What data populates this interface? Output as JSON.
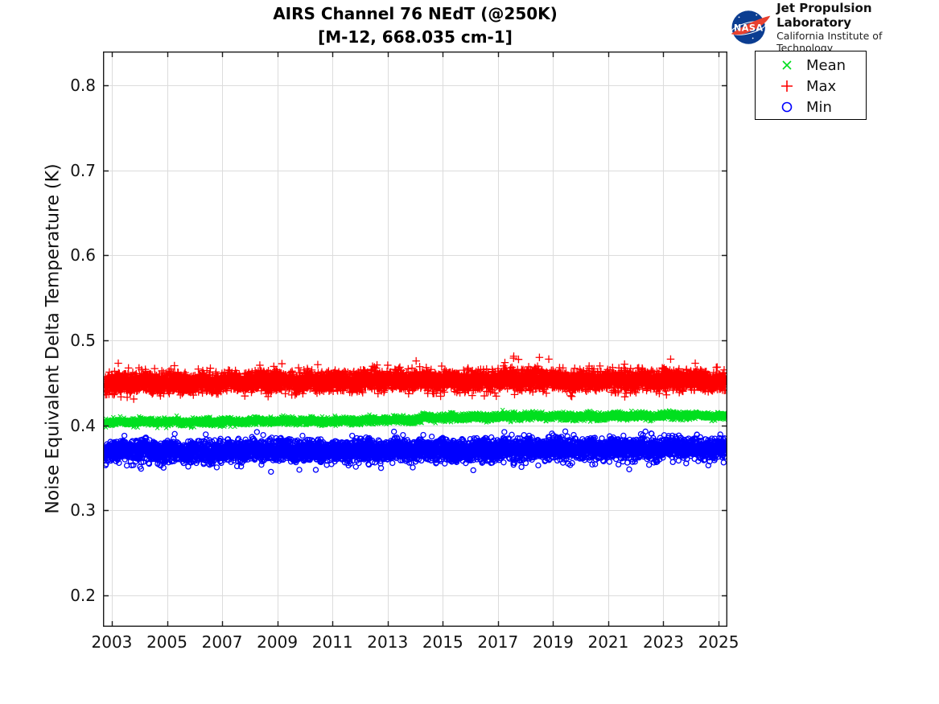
{
  "branding": {
    "org": "NASA",
    "lab_name": "Jet Propulsion Laboratory",
    "institute": "California Institute of Technology",
    "meatball_blue": "#0b3d91",
    "swoosh_red": "#e8412f"
  },
  "chart_data": {
    "type": "scatter",
    "title_line1": "AIRS Channel 76 NEdT (@250K)",
    "title_line2": "[M-12, 668.035 cm-1]",
    "title": "AIRS Channel 76 NEdT (@250K) [M-12, 668.035 cm-1]",
    "xlabel": "",
    "ylabel": "Noise Equivalent Delta Temperature (K)",
    "xlim": [
      2002.68,
      2025.32
    ],
    "ylim": [
      0.163,
      0.84
    ],
    "xticks": [
      2003,
      2005,
      2007,
      2009,
      2011,
      2013,
      2015,
      2017,
      2019,
      2021,
      2023,
      2025
    ],
    "yticks": [
      0.2,
      0.3,
      0.4,
      0.5,
      0.6,
      0.7,
      0.8
    ],
    "grid": true,
    "grid_color": "#dcdcdc",
    "axis_color": "#1c1c1c",
    "legend": {
      "position": "outside-top-right",
      "entries": [
        {
          "label": "Mean",
          "marker": "x",
          "color": "#00df1e"
        },
        {
          "label": "Max",
          "marker": "+",
          "color": "#fe0000"
        },
        {
          "label": "Min",
          "marker": "o",
          "color": "#0000fe"
        }
      ]
    },
    "series": [
      {
        "name": "Mean",
        "marker": "x",
        "color": "#00df1e",
        "marker_px": 6.4,
        "line_width": 1.1,
        "n_points": 6000,
        "seed": 101,
        "x_start": 2002.75,
        "x_end": 2025.25,
        "center_trend": [
          [
            2002.75,
            0.4035
          ],
          [
            2014.24,
            0.4062
          ],
          [
            2014.27,
            0.4094
          ],
          [
            2025.25,
            0.4117
          ]
        ],
        "sigma": 0.0021,
        "wiggle_amp": 0.0007,
        "outlier_rate_up": 0.002,
        "outlier_max_up": 0.005,
        "outlier_rate_down": 0.002,
        "outlier_max_down": 0.005,
        "summary": "Tight band near 0.404 K in 2003, small step up around 2014, ~0.412 K by 2025"
      },
      {
        "name": "Max",
        "marker": "+",
        "color": "#fe0000",
        "marker_px": 9.5,
        "line_width": 1.3,
        "n_points": 6000,
        "seed": 202,
        "x_start": 2002.75,
        "x_end": 2025.25,
        "center_trend": [
          [
            2002.75,
            0.4495
          ],
          [
            2016.5,
            0.4535
          ],
          [
            2025.25,
            0.4528
          ]
        ],
        "sigma": 0.0055,
        "wiggle_amp": 0.0013,
        "outlier_rate_up": 0.02,
        "outlier_max_up": 0.024,
        "outlier_rate_down": 0.007,
        "outlier_max_down": 0.013,
        "summary": "Dense band ~0.435-0.465 K centered near 0.45 K, sporadic spikes to ~0.48 K"
      },
      {
        "name": "Min",
        "marker": "o",
        "color": "#0000fe",
        "marker_px": 7.6,
        "line_width": 1.3,
        "n_points": 6000,
        "seed": 303,
        "x_start": 2002.75,
        "x_end": 2025.25,
        "center_trend": [
          [
            2002.75,
            0.369
          ],
          [
            2025.25,
            0.3735
          ]
        ],
        "sigma": 0.006,
        "wiggle_amp": 0.0012,
        "outlier_rate_up": 0.004,
        "outlier_max_up": 0.008,
        "outlier_rate_down": 0.02,
        "outlier_max_down": 0.023,
        "summary": "Dense band ~0.355-0.388 K centered near 0.37 K, sporadic dips to ~0.345 K"
      }
    ]
  }
}
